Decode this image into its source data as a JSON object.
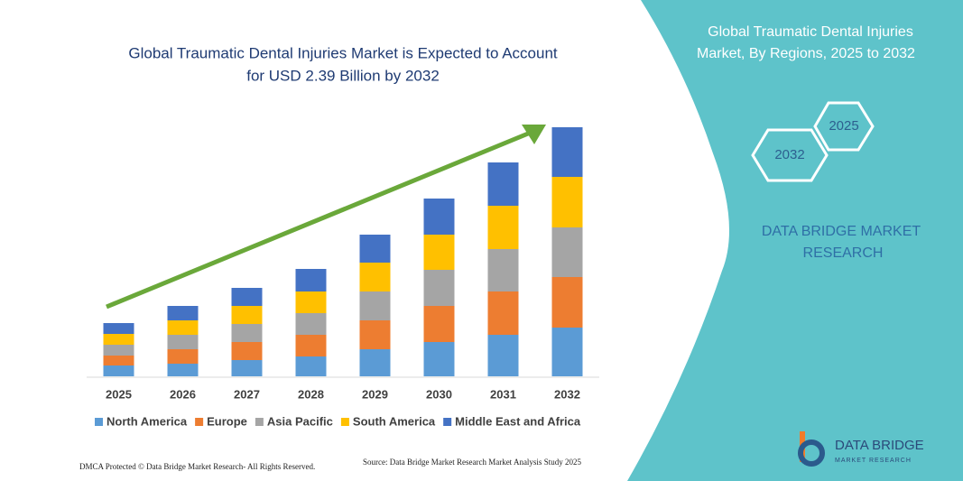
{
  "chart_data": {
    "type": "stacked_bar",
    "title": [
      "Global Traumatic Dental Injuries Market is Expected to Account",
      "for USD 2.39 Billion by 2032"
    ],
    "categories": [
      "2025",
      "2026",
      "2027",
      "2028",
      "2029",
      "2030",
      "2031",
      "2032"
    ],
    "series": [
      {
        "name": "North America",
        "color": "#5b9bd5",
        "values": [
          12,
          14,
          18,
          22,
          30,
          38,
          46,
          54
        ]
      },
      {
        "name": "Europe",
        "color": "#ed7d31",
        "values": [
          11,
          16,
          20,
          24,
          32,
          40,
          48,
          56
        ]
      },
      {
        "name": "Asia Pacific",
        "color": "#a5a5a5",
        "values": [
          12,
          16,
          20,
          24,
          32,
          40,
          47,
          55
        ]
      },
      {
        "name": "South America",
        "color": "#ffc000",
        "values": [
          12,
          16,
          20,
          24,
          32,
          39,
          48,
          56
        ]
      },
      {
        "name": "Middle East and Africa",
        "color": "#4472c4",
        "values": [
          12,
          16,
          20,
          25,
          31,
          40,
          48,
          55
        ]
      }
    ],
    "ylim": [
      0,
      300
    ],
    "legend": "bottom"
  },
  "panel": {
    "title": [
      "Global Traumatic Dental Injuries",
      "Market, By Regions, 2025 to 2032"
    ],
    "hex_start": "2025",
    "hex_end": "2032",
    "brand": [
      "DATA BRIDGE MARKET",
      "RESEARCH"
    ]
  },
  "logo": {
    "name": "DATA BRIDGE",
    "tagline": "MARKET RESEARCH"
  },
  "footer": {
    "left": "DMCA Protected © Data Bridge Market Research- All Rights Reserved.",
    "right": "Source: Data Bridge Market Research Market Analysis Study 2025"
  }
}
